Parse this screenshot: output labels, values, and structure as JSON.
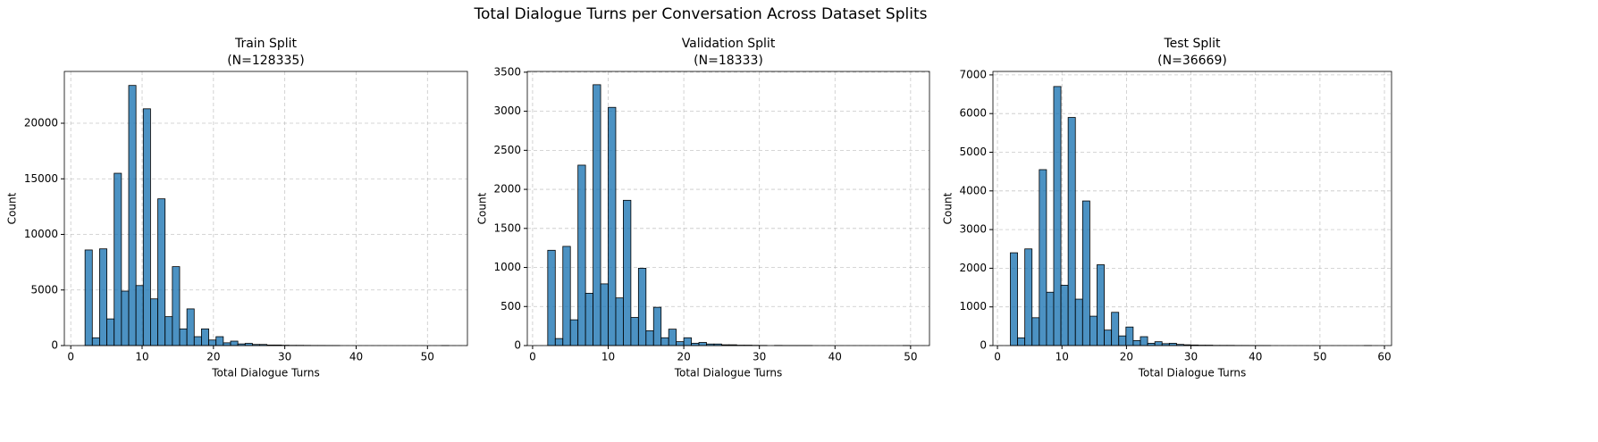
{
  "title": "Total Dialogue Turns per Conversation Across Dataset Splits",
  "chart_data": [
    {
      "type": "histogram",
      "title": "Train Split",
      "subtitle": "(N=128335)",
      "xlabel": "Total Dialogue Turns",
      "ylabel": "Count",
      "color": "#1f77b4",
      "edgecolor": "#000000",
      "opacity": 0.8,
      "grid": true,
      "bins": [
        2,
        3.02,
        4.04,
        5.06,
        6.08,
        7.1,
        8.12,
        9.14,
        10.16,
        11.18,
        12.2,
        13.22,
        14.24,
        15.26,
        16.28,
        17.3,
        18.32,
        19.34,
        20.36,
        21.38,
        22.4,
        23.42,
        24.44,
        25.46,
        26.48,
        27.5,
        28.52,
        29.54,
        30.56,
        31.58,
        32.6,
        33.62,
        34.64,
        35.66,
        36.68,
        37.7,
        38.72,
        39.74,
        40.76,
        41.78,
        42.8,
        43.82,
        44.84,
        45.86,
        46.88,
        47.9,
        48.92,
        49.94,
        50.96,
        51.98,
        53
      ],
      "values": [
        8600,
        700,
        8700,
        2400,
        15500,
        4900,
        23400,
        5400,
        21300,
        4200,
        13200,
        2600,
        7100,
        1500,
        3300,
        800,
        1500,
        500,
        800,
        250,
        400,
        150,
        200,
        100,
        100,
        50,
        50,
        30,
        20,
        20,
        15,
        10,
        10,
        5,
        3,
        0,
        0,
        0,
        0,
        0,
        0,
        0,
        0,
        0,
        0,
        0,
        0,
        0,
        0,
        1
      ],
      "xlim": [
        -0.9,
        55.6
      ],
      "xticks": [
        0,
        10,
        20,
        30,
        40,
        50
      ],
      "ylim": [
        0,
        24660
      ],
      "yticks": [
        0,
        5000,
        10000,
        15000,
        20000
      ]
    },
    {
      "type": "histogram",
      "title": "Validation Split",
      "subtitle": "(N=18333)",
      "xlabel": "Total Dialogue Turns",
      "ylabel": "Count",
      "color": "#1f77b4",
      "edgecolor": "#000000",
      "opacity": 0.8,
      "grid": true,
      "bins": [
        2,
        3,
        4,
        5,
        6,
        7,
        8,
        9,
        10,
        11,
        12,
        13,
        14,
        15,
        16,
        17,
        18,
        19,
        20,
        21,
        22,
        23,
        24,
        25,
        26,
        27,
        28,
        29,
        30,
        31,
        32,
        33,
        34,
        35,
        36,
        37,
        38,
        39,
        40,
        41,
        42,
        43,
        44,
        45,
        46,
        47,
        48,
        49,
        50
      ],
      "values": [
        1220,
        90,
        1270,
        330,
        2310,
        670,
        3340,
        790,
        3050,
        610,
        1860,
        360,
        990,
        190,
        490,
        100,
        210,
        50,
        100,
        30,
        40,
        20,
        20,
        10,
        10,
        5,
        5,
        3,
        2,
        0,
        2,
        1,
        1,
        1,
        1,
        0,
        0,
        0,
        0,
        0,
        0,
        0,
        0,
        0,
        0,
        0,
        0,
        1
      ],
      "xlim": [
        -0.7,
        52.5
      ],
      "xticks": [
        0,
        10,
        20,
        30,
        40,
        50
      ],
      "ylim": [
        0,
        3510
      ],
      "yticks": [
        0,
        500,
        1000,
        1500,
        2000,
        2500,
        3000,
        3500
      ]
    },
    {
      "type": "histogram",
      "title": "Test Split",
      "subtitle": "(N=36669)",
      "xlabel": "Total Dialogue Turns",
      "ylabel": "Count",
      "color": "#1f77b4",
      "edgecolor": "#000000",
      "opacity": 0.8,
      "grid": true,
      "bins": [
        2,
        3.12,
        4.24,
        5.36,
        6.48,
        7.6,
        8.72,
        9.84,
        10.96,
        12.08,
        13.2,
        14.32,
        15.44,
        16.56,
        17.68,
        18.8,
        19.92,
        21.04,
        22.16,
        23.28,
        24.4,
        25.52,
        26.64,
        27.76,
        28.88,
        30,
        31.12,
        32.24,
        33.36,
        34.48,
        35.6,
        36.72,
        37.84,
        38.96,
        40.08,
        41.2,
        42.32,
        43.44,
        44.56,
        45.68,
        46.8,
        47.92,
        49.04,
        50.16,
        51.28,
        52.4,
        53.52,
        54.64,
        55.76,
        56.88,
        58
      ],
      "values": [
        2400,
        200,
        2500,
        720,
        4550,
        1380,
        6700,
        1560,
        5900,
        1200,
        3740,
        760,
        2090,
        400,
        860,
        250,
        480,
        130,
        230,
        60,
        100,
        50,
        60,
        30,
        20,
        15,
        10,
        10,
        5,
        5,
        5,
        3,
        3,
        2,
        2,
        1,
        0,
        0,
        0,
        0,
        0,
        0,
        0,
        0,
        0,
        0,
        0,
        0,
        0,
        1
      ],
      "xlim": [
        -0.7,
        61.1
      ],
      "xticks": [
        0,
        10,
        20,
        30,
        40,
        50,
        60
      ],
      "ylim": [
        0,
        7090
      ],
      "yticks": [
        0,
        1000,
        2000,
        3000,
        4000,
        5000,
        6000,
        7000
      ]
    }
  ]
}
